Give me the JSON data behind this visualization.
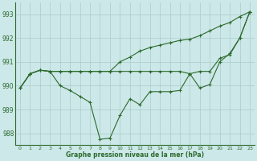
{
  "xlabel": "Graphe pression niveau de la mer (hPa)",
  "background_color": "#cce8e8",
  "grid_color": "#aacccc",
  "line_color": "#2d6a2d",
  "ylim": [
    987.5,
    993.5
  ],
  "yticks": [
    988,
    989,
    990,
    991,
    992,
    993
  ],
  "xticks": [
    0,
    1,
    2,
    3,
    4,
    5,
    6,
    7,
    8,
    9,
    10,
    11,
    12,
    13,
    14,
    15,
    16,
    17,
    18,
    19,
    20,
    21,
    22,
    23
  ],
  "line1": [
    989.9,
    990.5,
    990.65,
    990.6,
    990.6,
    990.6,
    990.6,
    990.6,
    990.6,
    990.6,
    990.6,
    990.6,
    990.6,
    990.6,
    990.6,
    990.6,
    990.6,
    990.5,
    990.6,
    990.6,
    991.15,
    991.3,
    992.0,
    993.1
  ],
  "line2": [
    989.9,
    990.5,
    990.65,
    990.6,
    990.6,
    990.6,
    990.6,
    990.6,
    990.6,
    990.6,
    991.0,
    991.2,
    991.45,
    991.6,
    991.7,
    991.8,
    991.9,
    991.95,
    992.1,
    992.3,
    992.5,
    992.65,
    992.9,
    993.1
  ],
  "line3": [
    989.9,
    990.5,
    990.65,
    990.6,
    990.0,
    989.8,
    989.55,
    989.3,
    987.75,
    987.8,
    988.75,
    989.45,
    989.2,
    989.75,
    989.75,
    989.75,
    989.8,
    990.5,
    989.9,
    990.05,
    991.0,
    991.35,
    992.0,
    993.1
  ]
}
